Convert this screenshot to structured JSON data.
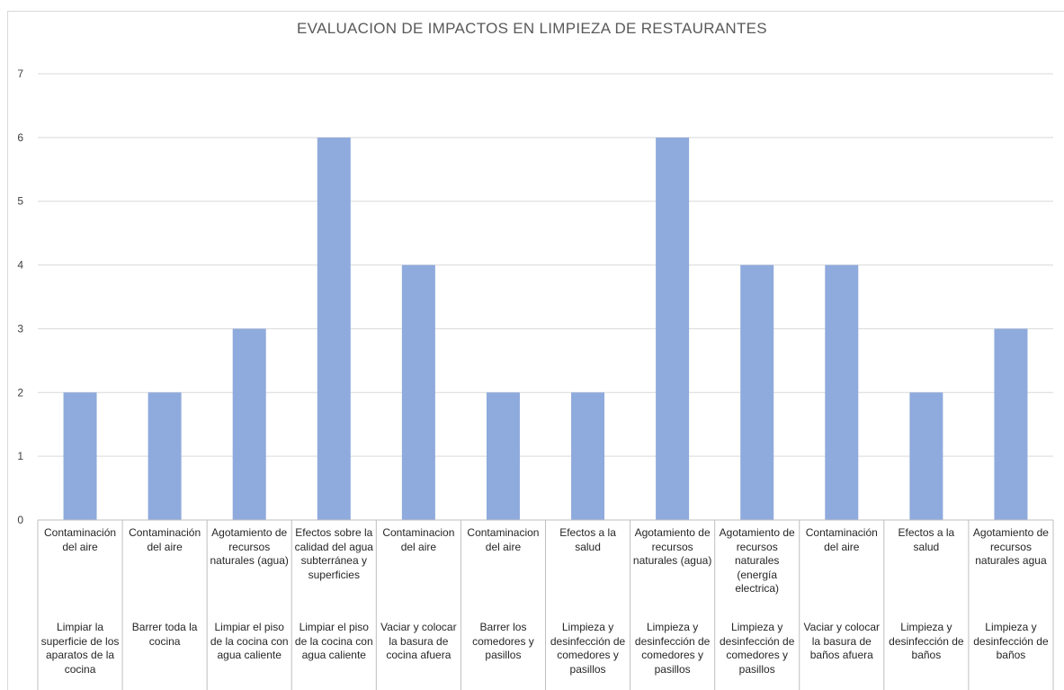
{
  "chart_data": {
    "type": "bar",
    "title": "EVALUACION DE IMPACTOS EN LIMPIEZA DE RESTAURANTES",
    "xlabel": "",
    "ylabel": "",
    "ylim": [
      0,
      7
    ],
    "yticks": [
      "0",
      "1",
      "2",
      "3",
      "4",
      "5",
      "6",
      "7"
    ],
    "grid": true,
    "legend": "none",
    "bar_color": "#8faadc",
    "categories": [
      {
        "impact": "Contaminación del aire",
        "activity": "Limpiar la superficie de los aparatos de la cocina"
      },
      {
        "impact": "Contaminación del aire",
        "activity": "Barrer toda la cocina"
      },
      {
        "impact": "Agotamiento de recursos naturales (agua)",
        "activity": "Limpiar el piso de la cocina con agua caliente"
      },
      {
        "impact": "Efectos sobre la calidad del agua subterránea y superficies",
        "activity": "Limpiar el piso de la cocina con agua caliente"
      },
      {
        "impact": "Contaminacion del aire",
        "activity": "Vaciar y colocar la basura de cocina afuera"
      },
      {
        "impact": "Contaminacion del aire",
        "activity": "Barrer los comedores y pasillos"
      },
      {
        "impact": "Efectos a la salud",
        "activity": "Limpieza y desinfección de comedores y pasillos"
      },
      {
        "impact": "Agotamiento de recursos naturales (agua)",
        "activity": "Limpieza y desinfección de comedores y pasillos"
      },
      {
        "impact": "Agotamiento de recursos naturales (energía electrica)",
        "activity": "Limpieza y desinfección de comedores y pasillos"
      },
      {
        "impact": "Contaminación del aire",
        "activity": "Vaciar y colocar la basura de baños afuera"
      },
      {
        "impact": "Efectos a la salud",
        "activity": "Limpieza y desinfección de baños"
      },
      {
        "impact": "Agotamiento de recursos naturales agua",
        "activity": "Limpieza y desinfección de baños"
      }
    ],
    "values": [
      2,
      2,
      3,
      6,
      4,
      2,
      2,
      6,
      4,
      4,
      2,
      3
    ]
  }
}
